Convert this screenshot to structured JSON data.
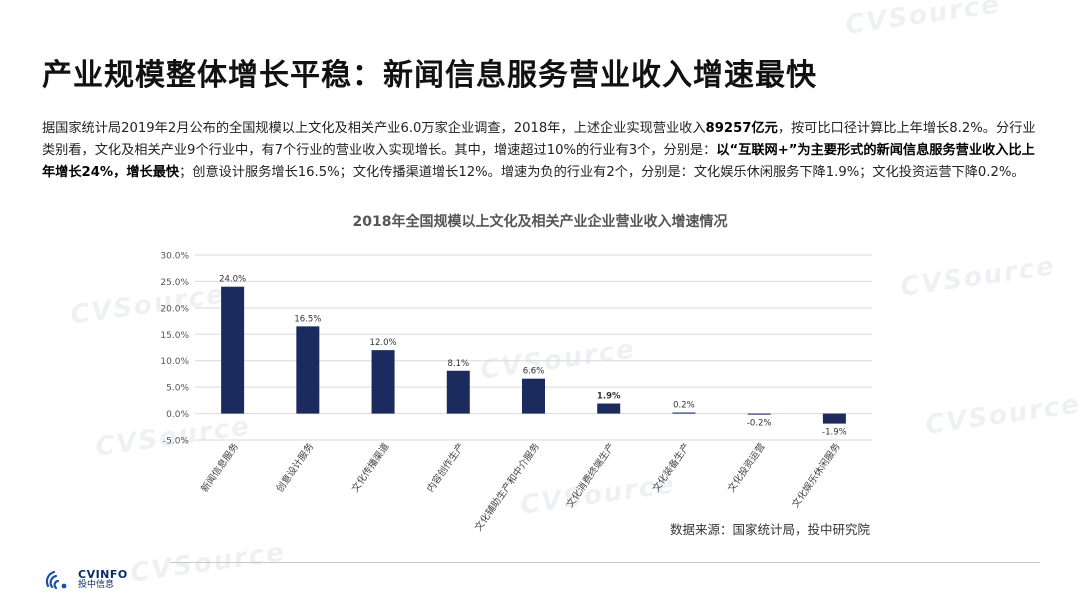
{
  "header": {
    "title": "产业规模整体增长平稳：新闻信息服务营业收入增速最快"
  },
  "description": {
    "p1": "据国家统计局2019年2月公布的全国规模以上文化及相关产业6.0万家企业调查，2018年，上述企业实现营业收入",
    "b1": "89257亿元",
    "p2": "，按可比口径计算比上年增长8.2%。分行业类别看，文化及相关产业9个行业中，有7个行业的营业收入实现增长。其中，增速超过10%的行业有3个，分别是：",
    "b2": "以“互联网+”为主要形式的新闻信息服务营业收入比上年增长24%，增长最快",
    "p3": "；创意设计服务增长16.5%；文化传播渠道增长12%。增速为负的行业有2个，分别是：文化娱乐休闲服务下降1.9%；文化投资运营下降0.2%。"
  },
  "chart_data": {
    "type": "bar",
    "title": "2018年全国规模以上文化及相关产业企业营业收入增速情况",
    "categories": [
      "新闻信息服务",
      "创意设计服务",
      "文化传播渠道",
      "内容创作生产",
      "文化辅助生产和中介服务",
      "文化消费终端生产",
      "文化装备生产",
      "文化投资运营",
      "文化娱乐休闲服务"
    ],
    "values": [
      24.0,
      16.5,
      12.0,
      8.1,
      6.6,
      1.9,
      0.2,
      -0.2,
      -1.9
    ],
    "data_labels": [
      "24.0%",
      "16.5%",
      "12.0%",
      "8.1%",
      "6.6%",
      "1.9%",
      "0.2%",
      "-0.2%",
      "-1.9%"
    ],
    "yticks": [
      "30.0%",
      "25.0%",
      "20.0%",
      "15.0%",
      "10.0%",
      "5.0%",
      "0.0%",
      "-5.0%"
    ],
    "ylim": [
      -5,
      30
    ],
    "grid": true,
    "color": "#1c2b5e"
  },
  "source": "数据来源：国家统计局，投中研究院",
  "brand": {
    "logo_en": "CVINFO",
    "logo_cn": "投中信息",
    "watermark": "CVSource"
  }
}
